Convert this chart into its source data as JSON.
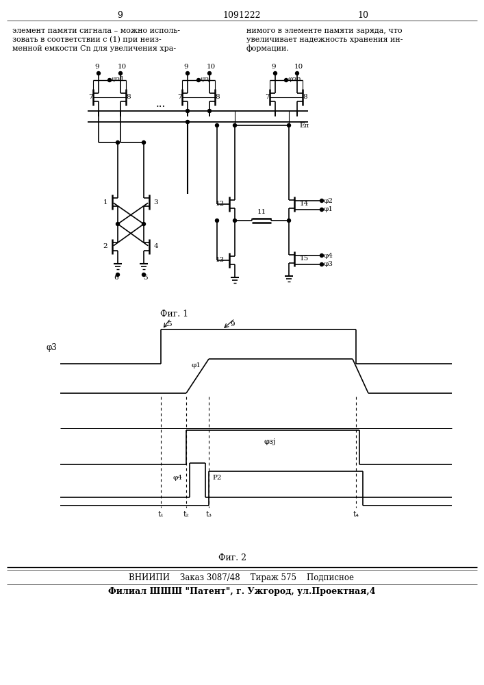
{
  "page_left": "9",
  "page_right": "10",
  "patent_number": "1091222",
  "body_left": [
    "элемент памяти сигнала – можно исполь-",
    "зовать в соответствии с (1) при неиз-",
    "менной емкости Cn для увеличения хра-"
  ],
  "body_right": [
    "нимого в элементе памяти заряда, что",
    "увеличивает надежность хранения ин-",
    "формации."
  ],
  "fig1_label": "Фиг. 1",
  "fig2_label": "Фиг. 2",
  "footer1": "ВНИИПИ    Заказ 3087/48    Тираж 575    Подписное",
  "footer2": "Филиал ШШШ \"Патент\", г. Ужгород, ул.Проектная,4"
}
